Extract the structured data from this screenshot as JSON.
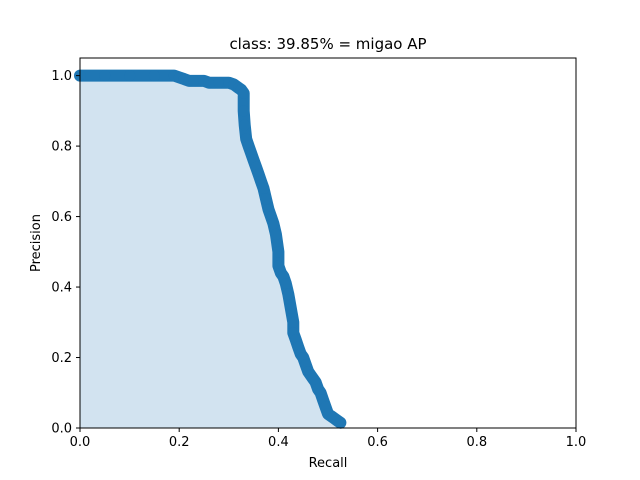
{
  "chart_data": {
    "type": "area",
    "title": "class: 39.85% = migao AP",
    "xlabel": "Recall",
    "ylabel": "Precision",
    "xlim": [
      0,
      1
    ],
    "ylim": [
      0,
      1.05
    ],
    "xticks": [
      "0.0",
      "0.2",
      "0.4",
      "0.6",
      "0.8",
      "1.0"
    ],
    "yticks": [
      "0.0",
      "0.2",
      "0.4",
      "0.6",
      "0.8",
      "1.0"
    ],
    "grid": false,
    "colors": {
      "line": "#1f77b4",
      "fill": "#d2e3f0"
    },
    "series": [
      {
        "x": [
          0.0,
          0.05,
          0.1,
          0.15,
          0.19,
          0.2,
          0.21,
          0.22,
          0.23,
          0.25,
          0.26,
          0.27,
          0.28,
          0.3,
          0.31,
          0.32,
          0.325,
          0.33,
          0.33,
          0.332,
          0.335,
          0.34,
          0.345,
          0.35,
          0.355,
          0.36,
          0.365,
          0.37,
          0.375,
          0.38,
          0.385,
          0.39,
          0.395,
          0.4,
          0.4,
          0.405,
          0.41,
          0.415,
          0.42,
          0.425,
          0.43,
          0.43,
          0.435,
          0.44,
          0.445,
          0.45,
          0.455,
          0.46,
          0.465,
          0.47,
          0.475,
          0.48,
          0.485,
          0.49,
          0.495,
          0.5,
          0.51,
          0.52,
          0.525
        ],
        "y": [
          1.0,
          1.0,
          1.0,
          1.0,
          1.0,
          0.995,
          0.99,
          0.985,
          0.985,
          0.985,
          0.98,
          0.98,
          0.98,
          0.98,
          0.975,
          0.965,
          0.96,
          0.95,
          0.9,
          0.86,
          0.82,
          0.8,
          0.78,
          0.76,
          0.74,
          0.72,
          0.7,
          0.68,
          0.65,
          0.62,
          0.6,
          0.58,
          0.55,
          0.5,
          0.46,
          0.44,
          0.43,
          0.41,
          0.38,
          0.34,
          0.3,
          0.27,
          0.25,
          0.23,
          0.21,
          0.2,
          0.18,
          0.16,
          0.15,
          0.14,
          0.13,
          0.11,
          0.1,
          0.08,
          0.06,
          0.04,
          0.03,
          0.02,
          0.015
        ]
      }
    ]
  }
}
